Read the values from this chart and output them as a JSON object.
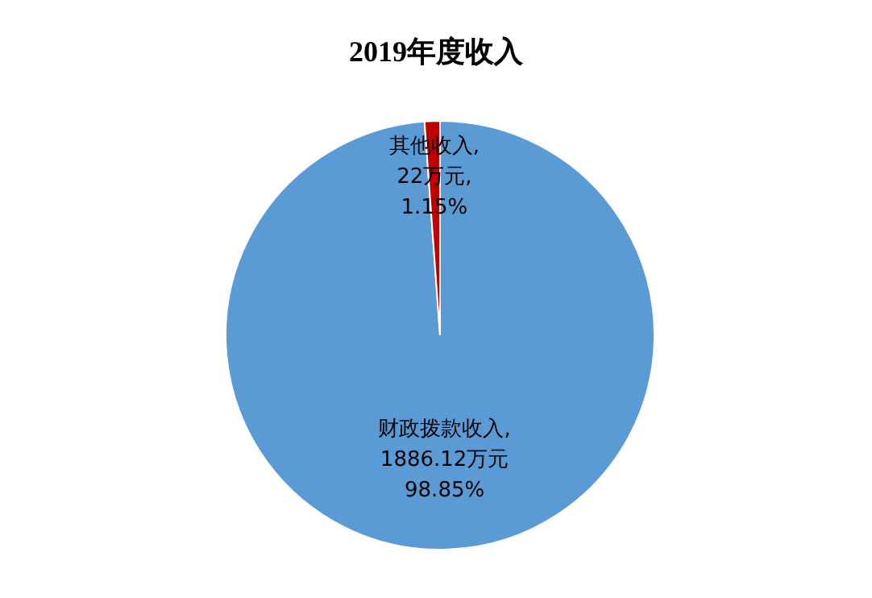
{
  "chart_data": {
    "type": "pie",
    "title": "2019年度收入",
    "categories": [
      "财政拨款收入",
      "其他收入"
    ],
    "values": [
      1886.12,
      22
    ],
    "colors": [
      "#5b9bd5",
      "#c00000"
    ],
    "value_labels": [
      ",\n1886.12万元\n98.85%",
      ",\n22万元,\n1.15%"
    ]
  }
}
